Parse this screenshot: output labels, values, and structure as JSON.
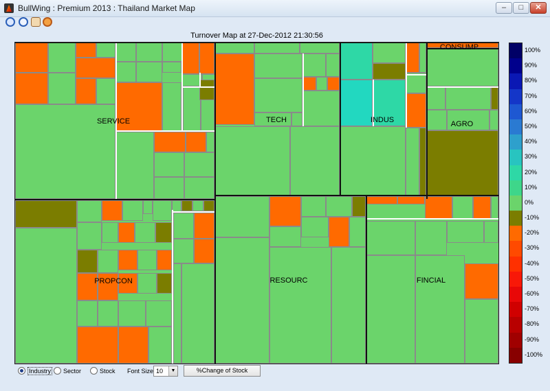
{
  "window": {
    "title": "BullWing : Premium 2013 : Thailand Market Map",
    "buttons": {
      "minimize": "–",
      "maximize": "□",
      "close": "✕"
    }
  },
  "toolbar": {
    "tools": [
      {
        "name": "zoom-in-icon"
      },
      {
        "name": "zoom-out-icon"
      },
      {
        "name": "pan-hand-icon"
      },
      {
        "name": "data-cursor-icon"
      }
    ]
  },
  "chart_data": {
    "type": "heatmap",
    "title": "Turnover Map at 27-Dec-2012 21:30:56",
    "sectors": [
      "SERVICE",
      "TECH",
      "INDUS",
      "CONSUMP",
      "AGRO",
      "PROPCON",
      "RESOURC",
      "FINCIAL"
    ],
    "legend": {
      "labels": [
        "100%",
        "90%",
        "80%",
        "70%",
        "60%",
        "50%",
        "40%",
        "30%",
        "20%",
        "10%",
        "0%",
        "-10%",
        "-20%",
        "-30%",
        "-40%",
        "-50%",
        "-60%",
        "-70%",
        "-80%",
        "-90%",
        "-100%"
      ],
      "colors": [
        "#000066",
        "#00008c",
        "#0a18b4",
        "#1436c8",
        "#1e58d2",
        "#2a7ad2",
        "#2ea0cc",
        "#28c4c0",
        "#2ed8a6",
        "#3ed68a",
        "#6bd46b",
        "#7b7d00",
        "#ff6a00",
        "#ff4a00",
        "#ff3000",
        "#f81808",
        "#e80808",
        "#d00000",
        "#b80000",
        "#a00000",
        "#880000"
      ]
    },
    "colors": {
      "up": "#6bd46b",
      "down": "#ff6a00",
      "flat": "#7b7d00",
      "strong_up": "#2ed8a6"
    }
  },
  "controls": {
    "view_options": [
      "Industry",
      "Sector",
      "Stock"
    ],
    "selected_view": "Industry",
    "font_size_label": "Font Size :",
    "font_size_value": "10",
    "button_label": "%Change of Stock"
  }
}
